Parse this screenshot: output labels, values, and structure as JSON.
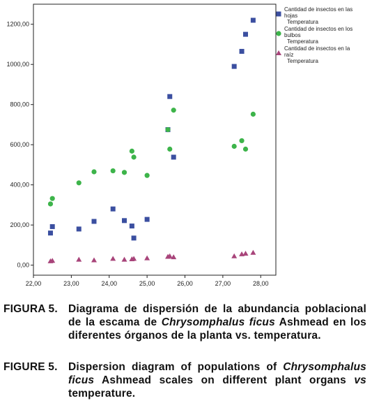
{
  "chart_data": {
    "type": "scatter",
    "x": {
      "min": 22.0,
      "max": 28.4,
      "ticks": [
        "22,00",
        "23,00",
        "24,00",
        "25,00",
        "26,00",
        "27,00",
        "28,00"
      ]
    },
    "y": {
      "min": -50,
      "max": 1300,
      "ticks": [
        "0,00",
        "200,00",
        "400,00",
        "600,00",
        "800,00",
        "1000,00",
        "1200,00"
      ]
    },
    "series": [
      {
        "name": "Cantidad de insectos en las hojas",
        "sublabel": "Temperatura",
        "marker": "square",
        "color": "#3b4fa0",
        "points": [
          [
            22.45,
            160
          ],
          [
            22.5,
            192
          ],
          [
            23.2,
            180
          ],
          [
            23.6,
            218
          ],
          [
            24.1,
            280
          ],
          [
            24.4,
            222
          ],
          [
            24.6,
            195
          ],
          [
            24.65,
            135
          ],
          [
            25.0,
            228
          ],
          [
            25.55,
            675
          ],
          [
            25.6,
            840
          ],
          [
            25.7,
            538
          ],
          [
            27.3,
            990
          ],
          [
            27.5,
            1065
          ],
          [
            27.6,
            1150
          ],
          [
            27.8,
            1220
          ]
        ]
      },
      {
        "name": "Cantidad de insectos en los bulbos",
        "sublabel": "Temperatura",
        "marker": "circle",
        "color": "#3db44a",
        "points": [
          [
            22.45,
            305
          ],
          [
            22.5,
            332
          ],
          [
            23.2,
            410
          ],
          [
            23.6,
            465
          ],
          [
            24.1,
            470
          ],
          [
            24.4,
            462
          ],
          [
            24.6,
            568
          ],
          [
            24.65,
            538
          ],
          [
            25.0,
            447
          ],
          [
            25.55,
            675
          ],
          [
            25.6,
            578
          ],
          [
            25.7,
            772
          ],
          [
            27.3,
            592
          ],
          [
            27.5,
            620
          ],
          [
            27.6,
            578
          ],
          [
            27.8,
            752
          ]
        ]
      },
      {
        "name": "Cantidad de insectos en la raíz",
        "sublabel": "Temperatura",
        "marker": "triangle",
        "color": "#a8447a",
        "points": [
          [
            22.45,
            20
          ],
          [
            22.5,
            22
          ],
          [
            23.2,
            28
          ],
          [
            23.6,
            25
          ],
          [
            24.1,
            32
          ],
          [
            24.4,
            28
          ],
          [
            24.6,
            30
          ],
          [
            24.65,
            32
          ],
          [
            25.0,
            35
          ],
          [
            25.55,
            42
          ],
          [
            25.6,
            45
          ],
          [
            25.7,
            40
          ],
          [
            27.3,
            45
          ],
          [
            27.5,
            55
          ],
          [
            27.6,
            58
          ],
          [
            27.8,
            62
          ]
        ]
      }
    ]
  },
  "caption_es": {
    "label": "FIGURA 5.",
    "text_a": "Diagrama de dispersión de la abundancia poblacional de la escama de ",
    "species": "Chrysomphalus ficus",
    "text_b": " Ashmead en los diferentes órganos de la planta vs. temperatura."
  },
  "caption_en": {
    "label": "FIGURE 5.",
    "text_a": "Dispersion diagram of populations of ",
    "species": "Chrysomphalus ficus",
    "text_b": " Ashmead scales on different plant organs ",
    "vs": "vs",
    "text_c": " temperature."
  }
}
